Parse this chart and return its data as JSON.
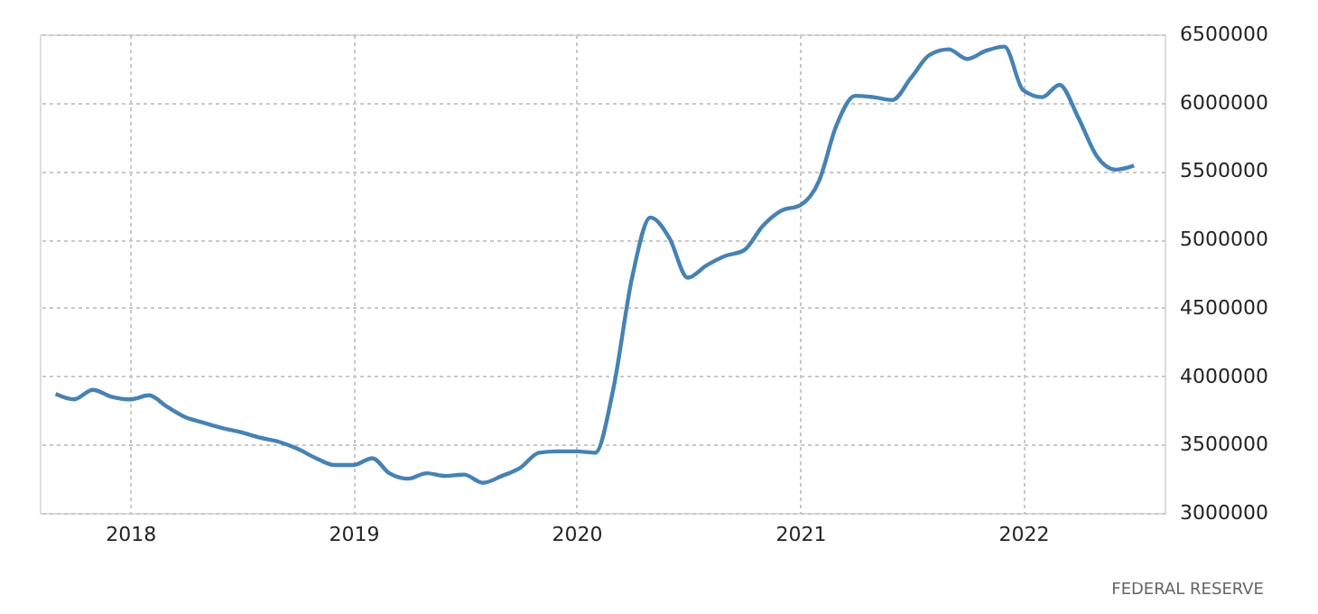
{
  "chart_data": {
    "type": "line",
    "x": [
      "2017-09",
      "2017-10",
      "2017-11",
      "2017-12",
      "2018-01",
      "2018-02",
      "2018-03",
      "2018-04",
      "2018-05",
      "2018-06",
      "2018-07",
      "2018-08",
      "2018-09",
      "2018-10",
      "2018-11",
      "2018-12",
      "2019-01",
      "2019-02",
      "2019-03",
      "2019-04",
      "2019-05",
      "2019-06",
      "2019-07",
      "2019-08",
      "2019-09",
      "2019-10",
      "2019-11",
      "2019-12",
      "2020-01",
      "2020-02",
      "2020-03",
      "2020-04",
      "2020-05",
      "2020-06",
      "2020-07",
      "2020-08",
      "2020-09",
      "2020-10",
      "2020-11",
      "2020-12",
      "2021-01",
      "2021-02",
      "2021-03",
      "2021-04",
      "2021-05",
      "2021-06",
      "2021-07",
      "2021-08",
      "2021-09",
      "2021-10",
      "2021-11",
      "2021-12",
      "2022-01",
      "2022-02",
      "2022-03",
      "2022-04",
      "2022-05",
      "2022-06",
      "2022-07"
    ],
    "series": [
      {
        "color": "#4682b4",
        "values": [
          3870000,
          3830000,
          3900000,
          3850000,
          3830000,
          3860000,
          3780000,
          3700000,
          3660000,
          3620000,
          3590000,
          3550000,
          3520000,
          3470000,
          3400000,
          3350000,
          3350000,
          3400000,
          3290000,
          3250000,
          3290000,
          3270000,
          3280000,
          3220000,
          3270000,
          3330000,
          3440000,
          3450000,
          3450000,
          3440000,
          3900000,
          4720000,
          5160000,
          5010000,
          4720000,
          4810000,
          4880000,
          4920000,
          5100000,
          5210000,
          5250000,
          5430000,
          5830000,
          6050000,
          6040000,
          6020000,
          6180000,
          6350000,
          6390000,
          6320000,
          6380000,
          6410000,
          6090000,
          6040000,
          6130000,
          5890000,
          5610000,
          5510000,
          5540000
        ]
      }
    ],
    "xlim": [
      "2017-08-06",
      "2022-08-20"
    ],
    "xticks": [
      "2018",
      "2019",
      "2020",
      "2021",
      "2022"
    ],
    "ylim": [
      3000000,
      6500000
    ],
    "yticks": [
      3000000,
      3500000,
      4000000,
      4500000,
      5000000,
      5500000,
      6000000,
      6500000
    ],
    "grid": true,
    "marker": "none",
    "line_style": "solid",
    "annotations": [
      "FEDERAL RESERVE"
    ]
  }
}
